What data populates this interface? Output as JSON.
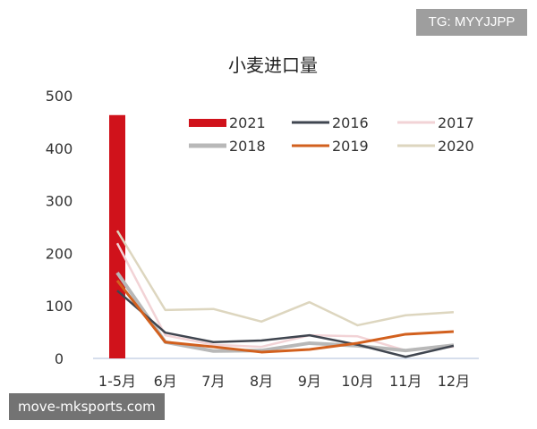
{
  "watermark_top": "TG: MYYJJPP",
  "watermark_bottom": "move-mksports.com",
  "chart_data": {
    "type": "bar+line",
    "title": "小麦进口量",
    "categories": [
      "1-5月",
      "6月",
      "7月",
      "8月",
      "9月",
      "10月",
      "11月",
      "12月"
    ],
    "ylim": [
      0,
      500
    ],
    "yticks": [
      0,
      100,
      200,
      300,
      400,
      500
    ],
    "grid": false,
    "legend_placement": "top-right",
    "bar_series": {
      "name": "2021",
      "color": "#d0121b",
      "values": [
        463
      ]
    },
    "series": [
      {
        "name": "2016",
        "color": "#404650",
        "values": [
          129,
          49,
          31,
          34,
          44,
          26,
          3,
          24
        ]
      },
      {
        "name": "2017",
        "color": "#f2d3d6",
        "values": [
          219,
          44,
          26,
          22,
          44,
          42,
          15,
          22
        ]
      },
      {
        "name": "2018",
        "color": "#b8b8b8",
        "values": [
          163,
          31,
          14,
          15,
          29,
          24,
          15,
          25
        ]
      },
      {
        "name": "2019",
        "color": "#d2601e",
        "values": [
          148,
          31,
          22,
          12,
          17,
          29,
          46,
          51
        ]
      },
      {
        "name": "2020",
        "color": "#ddd6bf",
        "values": [
          243,
          92,
          94,
          70,
          107,
          63,
          82,
          88
        ]
      }
    ]
  }
}
